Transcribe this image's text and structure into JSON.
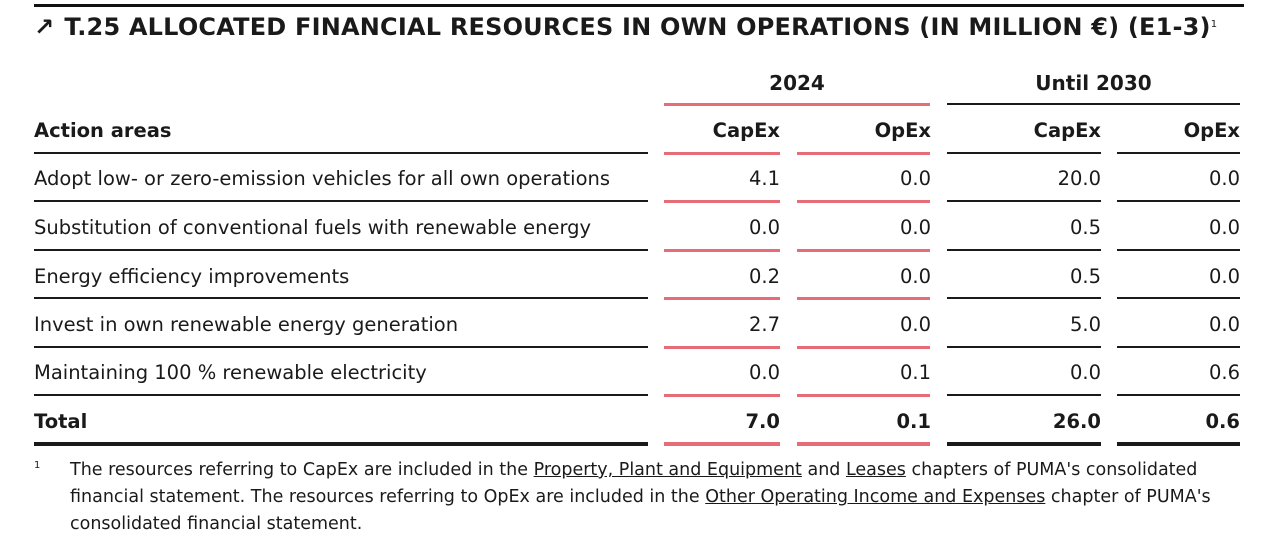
{
  "title": {
    "arrow": "↗",
    "text": "T.25 ALLOCATED FINANCIAL RESOURCES IN OWN OPERATIONS (IN MILLION €) (E1-3)",
    "sup": "1"
  },
  "table": {
    "group_headers": [
      "2024",
      "Until 2030"
    ],
    "col_headers": [
      "Action areas",
      "CapEx",
      "OpEx",
      "CapEx",
      "OpEx"
    ],
    "rows": [
      {
        "label": "Adopt low- or zero-emission vehicles for all own operations",
        "values": [
          "4.1",
          "0.0",
          "20.0",
          "0.0"
        ]
      },
      {
        "label": "Substitution of conventional fuels with renewable energy",
        "values": [
          "0.0",
          "0.0",
          "0.5",
          "0.0"
        ]
      },
      {
        "label": "Energy efficiency improvements",
        "values": [
          "0.2",
          "0.0",
          "0.5",
          "0.0"
        ]
      },
      {
        "label": "Invest in own renewable energy generation",
        "values": [
          "2.7",
          "0.0",
          "5.0",
          "0.0"
        ]
      },
      {
        "label": "Maintaining 100 % renewable electricity",
        "values": [
          "0.0",
          "0.1",
          "0.0",
          "0.6"
        ]
      }
    ],
    "total": {
      "label": "Total",
      "values": [
        "7.0",
        "0.1",
        "26.0",
        "0.6"
      ]
    }
  },
  "footnote": {
    "marker": "1",
    "part1": "The resources referring to CapEx are included in the ",
    "link1": "Property, Plant and Equipment",
    "part2": " and ",
    "link2": "Leases",
    "part3": " chapters of PUMA's consolidated financial statement. The resources referring to OpEx are included in the ",
    "link3": "Other Operating Income and Expenses",
    "part4": " chapter of PUMA's consolidated financial statement."
  },
  "colors": {
    "accent": "#e86c78",
    "rule": "#1a1a1a"
  }
}
